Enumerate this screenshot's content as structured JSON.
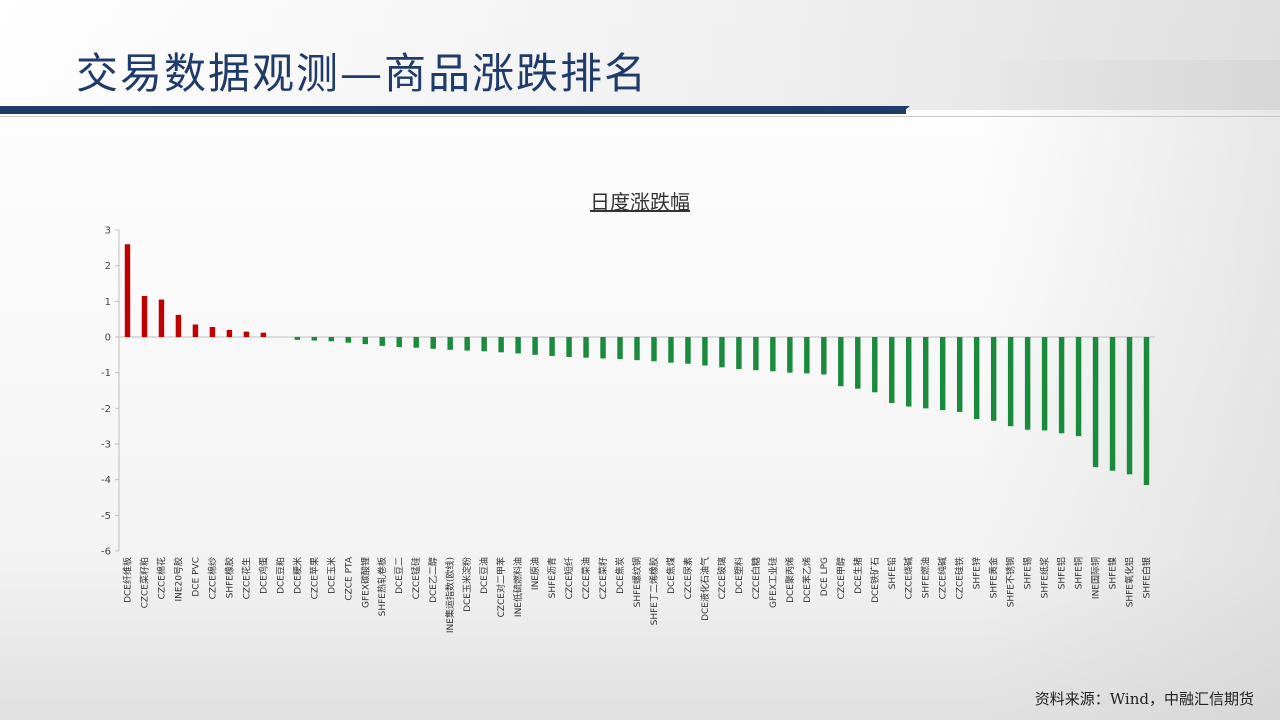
{
  "header": {
    "title": "交易数据观测—商品涨跌排名"
  },
  "footer": {
    "source": "资料来源：Wind，中融汇信期货"
  },
  "colors": {
    "up": "#c00000",
    "down": "#1a8a3c",
    "title": "#1f3b6a"
  },
  "chart_data": {
    "type": "bar",
    "title": "日度涨跌幅",
    "xlabel": "",
    "ylabel": "",
    "ylim": [
      -6,
      3
    ],
    "yticks": [
      3,
      2,
      1,
      0,
      -1,
      -2,
      -3,
      -4,
      -5,
      -6
    ],
    "grid": false,
    "categories": [
      "DCE纤维板",
      "CZCE菜籽粕",
      "CZCE棉花",
      "INE20号胶",
      "DCE PVC",
      "CZCE棉纱",
      "SHFE橡胶",
      "CZCE花生",
      "DCE鸡蛋",
      "DCE豆粕",
      "DCE粳米",
      "CZCE苹果",
      "DCE玉米",
      "CZCE PTA",
      "GFEX碳酸锂",
      "SHFE热轧卷板",
      "DCE豆二",
      "CZCE锰硅",
      "DCE乙二醇",
      "INE集运指数(欧线)",
      "DCE玉米淀粉",
      "DCE豆油",
      "CZCE对二甲苯",
      "INE低硫燃料油",
      "INE原油",
      "SHFE沥青",
      "CZCE短纤",
      "CZCE菜油",
      "CZCE菜籽",
      "DCE焦炭",
      "SHFE螺纹钢",
      "SHFE丁二烯橡胶",
      "DCE焦煤",
      "CZCE尿素",
      "DCE液化石油气",
      "CZCE玻璃",
      "DCE塑料",
      "CZCE白糖",
      "GFEX工业硅",
      "DCE聚丙烯",
      "DCE苯乙烯",
      "DCE LPG",
      "CZCE甲醇",
      "DCE生猪",
      "DCE铁矿石",
      "SHFE铅",
      "CZCE烧碱",
      "SHFE燃油",
      "CZCE纯碱",
      "CZCE硅铁",
      "SHFE锌",
      "SHFE黄金",
      "SHFE不锈钢",
      "SHFE锡",
      "SHFE纸浆",
      "SHFE铝",
      "SHFE铜",
      "INE国际铜",
      "SHFE镍",
      "SHFE氧化铝",
      "SHFE白银"
    ],
    "values": [
      2.6,
      1.15,
      1.05,
      0.62,
      0.35,
      0.28,
      0.2,
      0.15,
      0.12,
      0.0,
      -0.08,
      -0.1,
      -0.12,
      -0.16,
      -0.2,
      -0.25,
      -0.28,
      -0.3,
      -0.33,
      -0.36,
      -0.38,
      -0.4,
      -0.43,
      -0.46,
      -0.5,
      -0.53,
      -0.56,
      -0.58,
      -0.6,
      -0.62,
      -0.65,
      -0.68,
      -0.72,
      -0.75,
      -0.8,
      -0.85,
      -0.9,
      -0.93,
      -0.96,
      -1.0,
      -1.02,
      -1.05,
      -1.38,
      -1.45,
      -1.55,
      -1.85,
      -1.95,
      -2.0,
      -2.05,
      -2.1,
      -2.3,
      -2.35,
      -2.5,
      -2.6,
      -2.62,
      -2.7,
      -2.78,
      -3.65,
      -3.75,
      -3.85,
      -4.15
    ]
  }
}
